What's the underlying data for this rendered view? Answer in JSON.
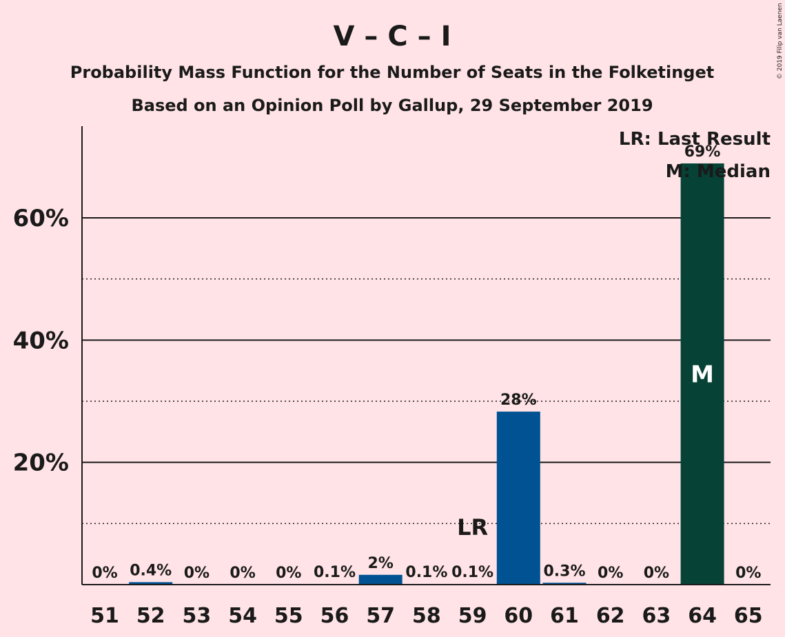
{
  "title": "V – C – I",
  "subtitle1": "Probability Mass Function for the Number of Seats in the Folketinget",
  "subtitle2": "Based on an Opinion Poll by Gallup, 29 September 2019",
  "copyright": "© 2019 Filip van Laenen",
  "legend": {
    "last_result": "LR: Last Result",
    "median": "M: Median"
  },
  "colors": {
    "background": "#ffe3e6",
    "bar": "#005293",
    "median_bar": "#064236",
    "text": "#1a1a1a"
  },
  "chart_data": {
    "type": "bar",
    "categories": [
      "51",
      "52",
      "53",
      "54",
      "55",
      "56",
      "57",
      "58",
      "59",
      "60",
      "61",
      "62",
      "63",
      "64",
      "65"
    ],
    "values": [
      0,
      0.4,
      0,
      0,
      0,
      0.1,
      1.6,
      0.1,
      0.1,
      28.3,
      0.3,
      0,
      0,
      68.9,
      0
    ],
    "value_labels": [
      "0%",
      "0.4%",
      "0%",
      "0%",
      "0%",
      "0.1%",
      "2%",
      "0.1%",
      "0.1%",
      "28%",
      "0.3%",
      "0%",
      "0%",
      "69%",
      "0%"
    ],
    "last_result": "59",
    "last_result_marker": "LR",
    "median": "64",
    "median_marker": "M",
    "y_ticks": [
      20,
      40,
      60
    ],
    "y_tick_labels": [
      "20%",
      "40%",
      "60%"
    ],
    "y_minor_ticks": [
      10,
      30,
      50
    ],
    "ylim": [
      0,
      75
    ],
    "grid": true,
    "legend_position": "top-right"
  }
}
